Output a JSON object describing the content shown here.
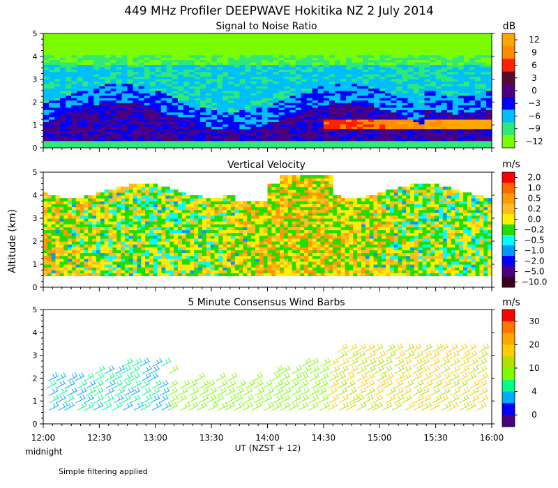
{
  "title": "449 MHz Profiler DEEPWAVE Hokitika NZ  2 July 2014",
  "ylabel": "Altitude (km)",
  "xlabel": "UT  (NZST + 12)",
  "midnight_label": "midnight",
  "footer_note": "Simple filtering applied",
  "x_ticks": [
    "12:00",
    "12:30",
    "13:00",
    "13:30",
    "14:00",
    "14:30",
    "15:00",
    "15:30",
    "16:00"
  ],
  "chart_data": [
    {
      "type": "heatmap",
      "title": "Signal to Noise Ratio",
      "units": "dB",
      "xlim": [
        12.0,
        16.0
      ],
      "ylim": [
        0,
        5
      ],
      "y_ticks": [
        "0",
        "1",
        "2",
        "3",
        "4",
        "5"
      ],
      "colorbar_labels": [
        "12",
        "9",
        "6",
        "3",
        "0",
        "−3",
        "−6",
        "−9",
        "−12"
      ],
      "colors": [
        "#ffa500",
        "#ff8c00",
        "#ff2000",
        "#5a0a2a",
        "#4b0082",
        "#0000ff",
        "#00bfff",
        "#2ee879",
        "#7cfc00"
      ]
    },
    {
      "type": "heatmap",
      "title": "Vertical Velocity",
      "units": "m/s",
      "xlim": [
        12.0,
        16.0
      ],
      "ylim": [
        0,
        5
      ],
      "y_ticks": [
        "0",
        "1",
        "2",
        "3",
        "4",
        "5"
      ],
      "colorbar_labels": [
        "2.0",
        "1.0",
        "0.5",
        "0.2",
        "0.0",
        "−0.2",
        "−0.5",
        "−1.0",
        "−2.0",
        "−5.0",
        "−10.0"
      ],
      "colors": [
        "#ff0000",
        "#ff6600",
        "#ff9900",
        "#ffbb22",
        "#ffee00",
        "#22dd00",
        "#00ffff",
        "#0099ff",
        "#0000ff",
        "#4b0082",
        "#3a0020"
      ]
    },
    {
      "type": "scatter",
      "title": "5 Minute Consensus Wind Barbs",
      "units": "m/s",
      "xlim": [
        12.0,
        16.0
      ],
      "ylim": [
        0,
        5
      ],
      "y_ticks": [
        "0",
        "1",
        "2",
        "3",
        "4",
        "5"
      ],
      "colorbar_labels": [
        "30",
        "20",
        "10",
        "4",
        "0"
      ],
      "colors": [
        "#ff0000",
        "#ff7700",
        "#ffa500",
        "#ffcc00",
        "#b2e000",
        "#7cfc00",
        "#00ff88",
        "#00aaff",
        "#0000ff",
        "#4b0082"
      ]
    }
  ]
}
